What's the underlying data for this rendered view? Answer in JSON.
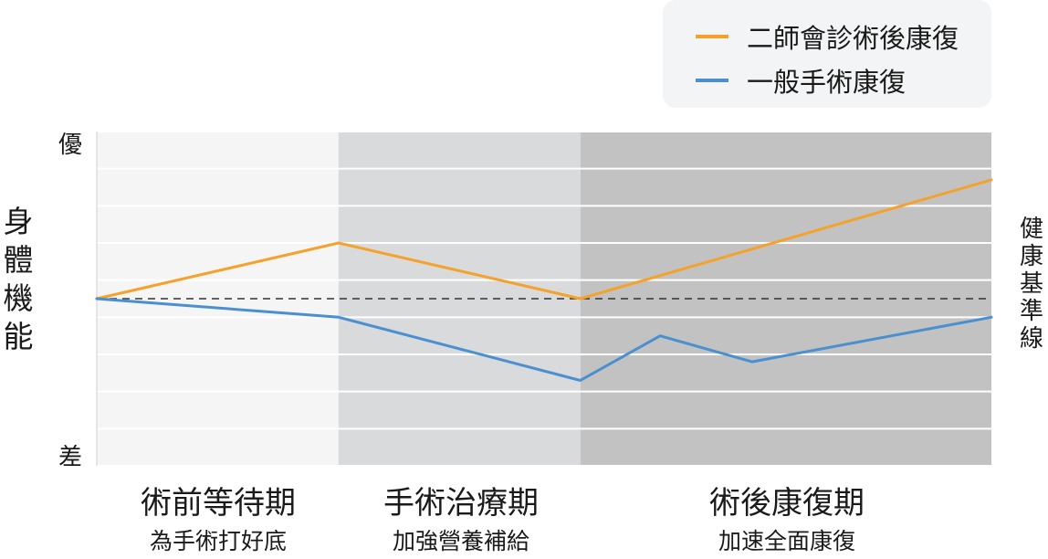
{
  "chart_data": {
    "type": "line",
    "ylabel": "身體機能",
    "ytick_top": "優",
    "ytick_bottom": "差",
    "baseline_label": "健康基準線",
    "ylim": [
      0,
      9
    ],
    "baseline": 4.5,
    "grid": true,
    "legend_position": "top-right",
    "phases": [
      {
        "title": "術前等待期",
        "subtitle": "為手術打好底",
        "start": 0,
        "end": 1,
        "color": "#f5f5f6"
      },
      {
        "title": "手術治療期",
        "subtitle": "加強營養補給",
        "start": 1,
        "end": 2,
        "color": "#d9dadb"
      },
      {
        "title": "術後康復期",
        "subtitle": "加速全面康復",
        "start": 2,
        "end": 3.7,
        "color": "#c2c2c2"
      }
    ],
    "series": [
      {
        "name": "二師會診術後康復",
        "color": "#f5a22c",
        "x": [
          0,
          1,
          2,
          3.7
        ],
        "y": [
          4.5,
          6.0,
          4.5,
          7.7
        ]
      },
      {
        "name": "一般手術康復",
        "color": "#4a90d0",
        "x": [
          0,
          1,
          2,
          2.33,
          2.71,
          3.7
        ],
        "y": [
          4.5,
          4.0,
          2.3,
          3.5,
          2.8,
          4.0
        ]
      }
    ]
  }
}
